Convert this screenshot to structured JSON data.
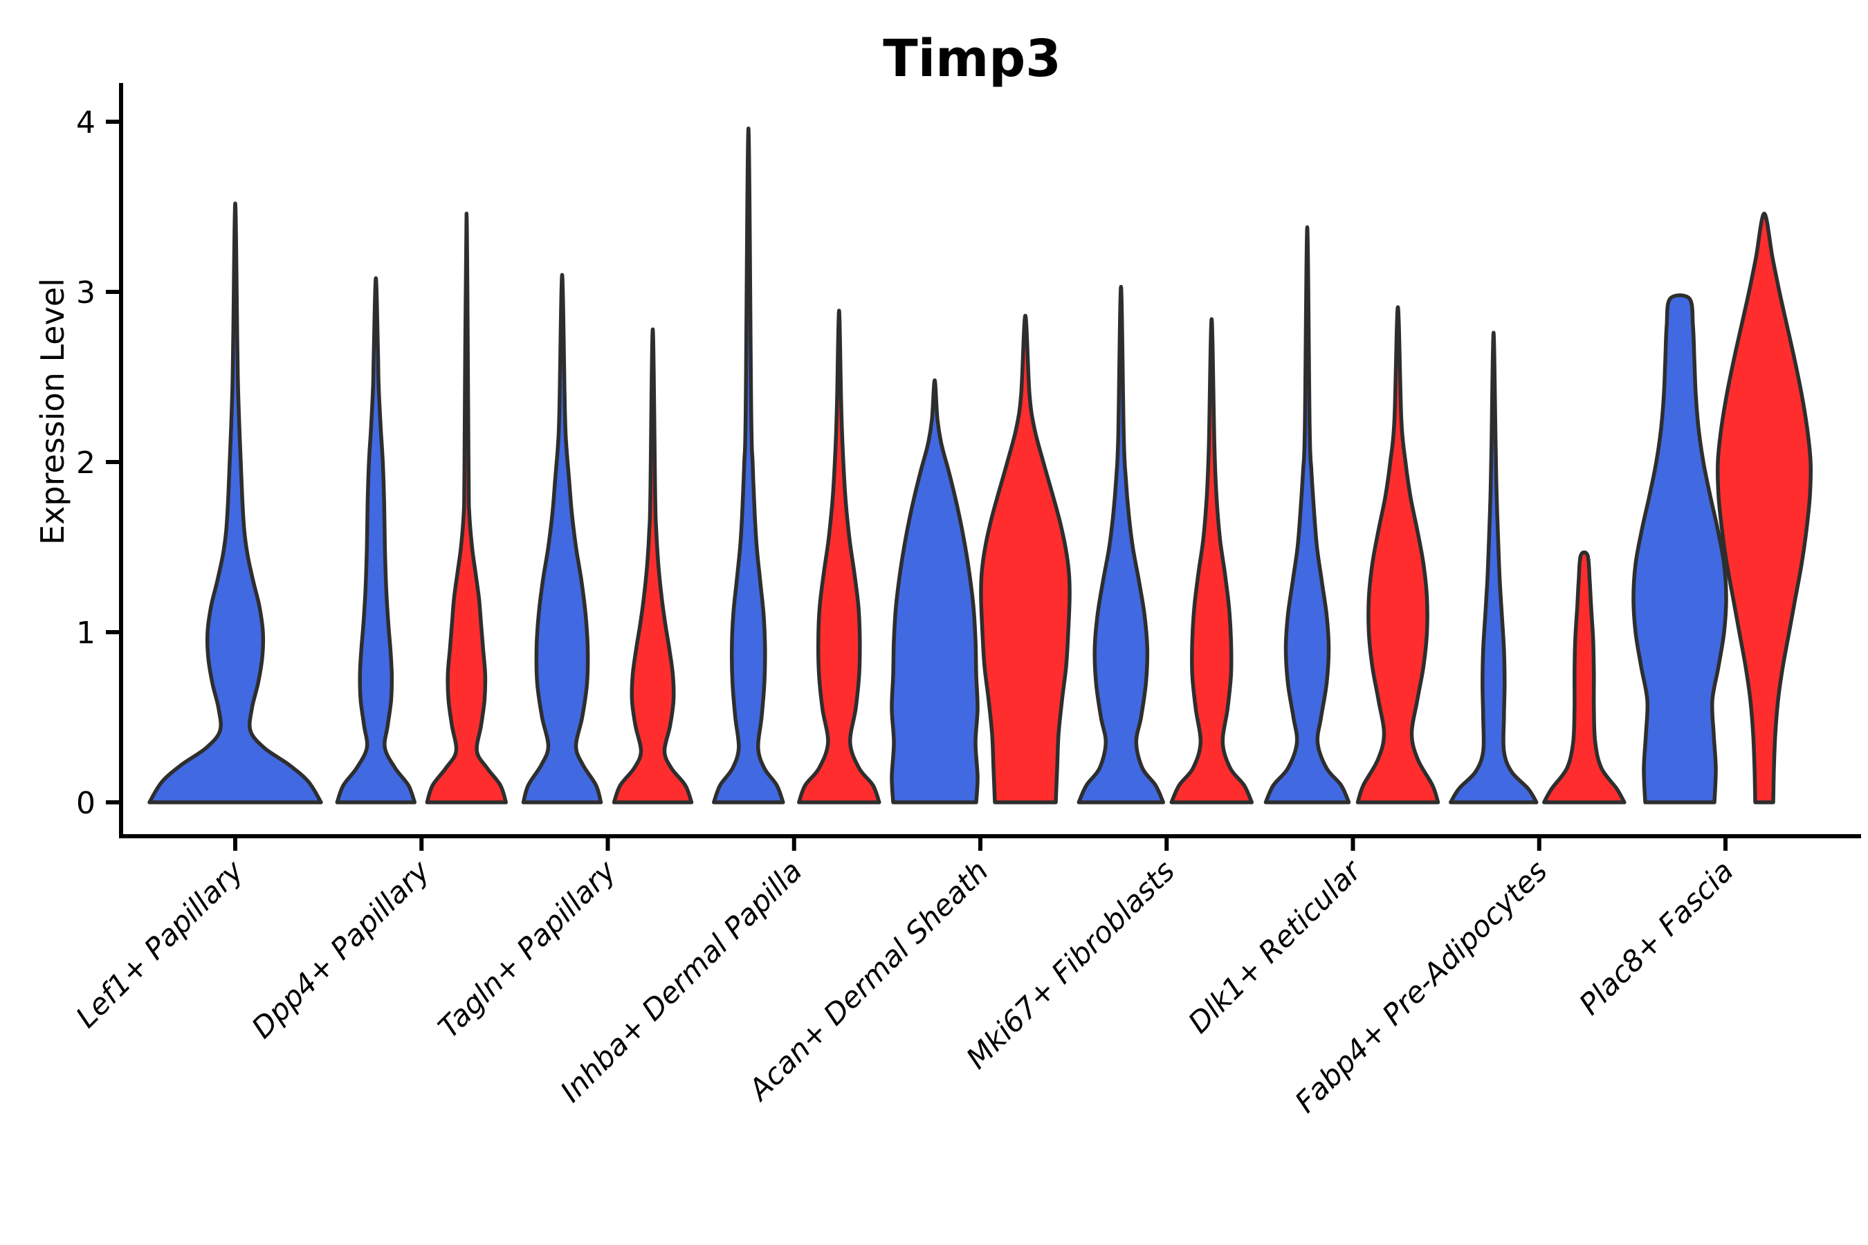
{
  "chart_data": {
    "type": "violin",
    "title": "Timp3",
    "ylabel": "Expression Level",
    "xlabel": "",
    "ylim": [
      0,
      4.26
    ],
    "yticks": [
      0,
      1,
      2,
      3,
      4
    ],
    "x_tick_rotation": 45,
    "grid": false,
    "legend": "none",
    "split_colors": {
      "blue": "#4169E1",
      "red": "#FF2D2D"
    },
    "edge_color": "#2e2e2e",
    "axis_color": "#000000",
    "categories": [
      "Lef1+ Papillary",
      "Dpp4+ Papillary",
      "Tagln+ Papillary",
      "Inhba+ Dermal Papilla",
      "Acan+ Dermal Sheath",
      "Mki67+ Fibroblasts",
      "Dlk1+ Reticular",
      "Fabp4+ Pre-Adipocytes",
      "Plac8+ Fascia"
    ],
    "violins": [
      {
        "cat": 0,
        "side": "blue",
        "single": true,
        "top": 3.52,
        "profile": [
          [
            0,
            124
          ],
          [
            0.12,
            106
          ],
          [
            0.22,
            78
          ],
          [
            0.32,
            42
          ],
          [
            0.42,
            22
          ],
          [
            0.55,
            24
          ],
          [
            0.7,
            33
          ],
          [
            0.85,
            39
          ],
          [
            1.0,
            40
          ],
          [
            1.15,
            35
          ],
          [
            1.3,
            26
          ],
          [
            1.45,
            18
          ],
          [
            1.6,
            13
          ],
          [
            1.8,
            10
          ],
          [
            2.0,
            8
          ],
          [
            2.2,
            6
          ],
          [
            2.45,
            4
          ],
          [
            2.7,
            3
          ]
        ]
      },
      {
        "cat": 1,
        "side": "blue",
        "top": 3.08,
        "profile": [
          [
            0,
            56
          ],
          [
            0.1,
            47
          ],
          [
            0.2,
            28
          ],
          [
            0.32,
            13
          ],
          [
            0.45,
            17
          ],
          [
            0.6,
            22
          ],
          [
            0.75,
            23
          ],
          [
            0.9,
            21
          ],
          [
            1.05,
            18
          ],
          [
            1.25,
            15
          ],
          [
            1.5,
            13
          ],
          [
            1.75,
            12
          ],
          [
            2.0,
            10
          ],
          [
            2.2,
            7
          ],
          [
            2.45,
            4
          ],
          [
            2.65,
            3
          ]
        ]
      },
      {
        "cat": 1,
        "side": "red",
        "top": 3.46,
        "profile": [
          [
            0,
            57
          ],
          [
            0.1,
            49
          ],
          [
            0.2,
            30
          ],
          [
            0.3,
            15
          ],
          [
            0.45,
            21
          ],
          [
            0.6,
            26
          ],
          [
            0.75,
            27
          ],
          [
            0.9,
            24
          ],
          [
            1.05,
            21
          ],
          [
            1.2,
            18
          ],
          [
            1.35,
            13
          ],
          [
            1.5,
            8
          ],
          [
            1.7,
            4
          ],
          [
            1.95,
            3
          ]
        ]
      },
      {
        "cat": 2,
        "side": "blue",
        "top": 3.1,
        "profile": [
          [
            0,
            56
          ],
          [
            0.1,
            49
          ],
          [
            0.22,
            30
          ],
          [
            0.33,
            20
          ],
          [
            0.5,
            29
          ],
          [
            0.7,
            36
          ],
          [
            0.9,
            37
          ],
          [
            1.1,
            34
          ],
          [
            1.3,
            28
          ],
          [
            1.5,
            20
          ],
          [
            1.7,
            14
          ],
          [
            1.9,
            10
          ],
          [
            2.1,
            6
          ],
          [
            2.3,
            4
          ]
        ]
      },
      {
        "cat": 2,
        "side": "red",
        "top": 2.78,
        "profile": [
          [
            0,
            56
          ],
          [
            0.1,
            47
          ],
          [
            0.2,
            27
          ],
          [
            0.3,
            17
          ],
          [
            0.45,
            25
          ],
          [
            0.6,
            30
          ],
          [
            0.75,
            29
          ],
          [
            0.9,
            24
          ],
          [
            1.05,
            18
          ],
          [
            1.2,
            13
          ],
          [
            1.4,
            8
          ],
          [
            1.6,
            5
          ],
          [
            1.8,
            3.5
          ]
        ]
      },
      {
        "cat": 3,
        "side": "blue",
        "top": 3.96,
        "profile": [
          [
            0,
            50
          ],
          [
            0.1,
            41
          ],
          [
            0.2,
            23
          ],
          [
            0.32,
            14
          ],
          [
            0.5,
            19
          ],
          [
            0.7,
            23
          ],
          [
            0.9,
            24
          ],
          [
            1.1,
            22
          ],
          [
            1.3,
            17
          ],
          [
            1.5,
            12
          ],
          [
            1.7,
            9
          ],
          [
            2.0,
            6
          ],
          [
            2.3,
            4
          ]
        ]
      },
      {
        "cat": 3,
        "side": "red",
        "top": 2.89,
        "profile": [
          [
            0,
            58
          ],
          [
            0.1,
            49
          ],
          [
            0.2,
            29
          ],
          [
            0.35,
            16
          ],
          [
            0.55,
            24
          ],
          [
            0.75,
            29
          ],
          [
            0.95,
            30
          ],
          [
            1.15,
            28
          ],
          [
            1.35,
            22
          ],
          [
            1.55,
            15
          ],
          [
            1.8,
            9
          ],
          [
            2.1,
            5
          ],
          [
            2.35,
            3
          ]
        ]
      },
      {
        "cat": 4,
        "side": "blue",
        "top": 2.48,
        "profile": [
          [
            0,
            60
          ],
          [
            0.15,
            62
          ],
          [
            0.35,
            59
          ],
          [
            0.55,
            62
          ],
          [
            0.75,
            60
          ],
          [
            0.95,
            59
          ],
          [
            1.15,
            56
          ],
          [
            1.35,
            50
          ],
          [
            1.55,
            42
          ],
          [
            1.75,
            32
          ],
          [
            1.95,
            20
          ],
          [
            2.1,
            10
          ],
          [
            2.25,
            4
          ]
        ]
      },
      {
        "cat": 4,
        "side": "red",
        "top": 2.86,
        "profile": [
          [
            0,
            44
          ],
          [
            0.2,
            46
          ],
          [
            0.4,
            48
          ],
          [
            0.6,
            53
          ],
          [
            0.8,
            59
          ],
          [
            1.0,
            62
          ],
          [
            1.2,
            64
          ],
          [
            1.35,
            63
          ],
          [
            1.5,
            58
          ],
          [
            1.65,
            50
          ],
          [
            1.8,
            40
          ],
          [
            2.0,
            26
          ],
          [
            2.2,
            13
          ],
          [
            2.4,
            6
          ]
        ]
      },
      {
        "cat": 5,
        "side": "blue",
        "top": 3.03,
        "profile": [
          [
            0,
            61
          ],
          [
            0.1,
            50
          ],
          [
            0.2,
            31
          ],
          [
            0.35,
            22
          ],
          [
            0.5,
            29
          ],
          [
            0.7,
            36
          ],
          [
            0.9,
            38
          ],
          [
            1.1,
            34
          ],
          [
            1.3,
            26
          ],
          [
            1.5,
            17
          ],
          [
            1.7,
            11
          ],
          [
            1.9,
            7
          ],
          [
            2.15,
            4
          ]
        ]
      },
      {
        "cat": 5,
        "side": "red",
        "top": 2.84,
        "profile": [
          [
            0,
            58
          ],
          [
            0.1,
            47
          ],
          [
            0.2,
            27
          ],
          [
            0.35,
            16
          ],
          [
            0.55,
            23
          ],
          [
            0.75,
            28
          ],
          [
            0.95,
            28
          ],
          [
            1.15,
            25
          ],
          [
            1.35,
            19
          ],
          [
            1.55,
            12
          ],
          [
            1.8,
            7
          ],
          [
            2.1,
            4
          ]
        ]
      },
      {
        "cat": 6,
        "side": "blue",
        "top": 3.38,
        "profile": [
          [
            0,
            60
          ],
          [
            0.1,
            49
          ],
          [
            0.2,
            28
          ],
          [
            0.35,
            15
          ],
          [
            0.5,
            20
          ],
          [
            0.7,
            28
          ],
          [
            0.9,
            31
          ],
          [
            1.1,
            28
          ],
          [
            1.3,
            21
          ],
          [
            1.5,
            14
          ],
          [
            1.7,
            10
          ],
          [
            1.95,
            6
          ],
          [
            2.2,
            3.5
          ]
        ]
      },
      {
        "cat": 6,
        "side": "red",
        "top": 2.91,
        "profile": [
          [
            0,
            58
          ],
          [
            0.1,
            50
          ],
          [
            0.25,
            29
          ],
          [
            0.4,
            20
          ],
          [
            0.6,
            28
          ],
          [
            0.8,
            37
          ],
          [
            1.0,
            42
          ],
          [
            1.2,
            42
          ],
          [
            1.4,
            37
          ],
          [
            1.6,
            28
          ],
          [
            1.8,
            18
          ],
          [
            2.0,
            11
          ],
          [
            2.25,
            5
          ]
        ]
      },
      {
        "cat": 7,
        "side": "blue",
        "top": 2.76,
        "profile": [
          [
            0,
            62
          ],
          [
            0.08,
            50
          ],
          [
            0.18,
            26
          ],
          [
            0.3,
            15
          ],
          [
            0.5,
            15
          ],
          [
            0.7,
            16
          ],
          [
            0.9,
            15
          ],
          [
            1.1,
            12
          ],
          [
            1.3,
            9
          ],
          [
            1.5,
            7
          ],
          [
            1.8,
            4.5
          ],
          [
            2.1,
            3
          ]
        ]
      },
      {
        "cat": 7,
        "side": "red",
        "top": 1.45,
        "blunt": true,
        "profile": [
          [
            0,
            58
          ],
          [
            0.08,
            47
          ],
          [
            0.2,
            25
          ],
          [
            0.35,
            16
          ],
          [
            0.55,
            14
          ],
          [
            0.75,
            14
          ],
          [
            0.95,
            13
          ],
          [
            1.15,
            10
          ],
          [
            1.3,
            8
          ],
          [
            1.45,
            5
          ]
        ]
      },
      {
        "cat": 8,
        "side": "blue",
        "top": 2.96,
        "blunt": true,
        "profile": [
          [
            0,
            50
          ],
          [
            0.2,
            52
          ],
          [
            0.4,
            49
          ],
          [
            0.6,
            47
          ],
          [
            0.8,
            56
          ],
          [
            1.0,
            64
          ],
          [
            1.2,
            67
          ],
          [
            1.4,
            64
          ],
          [
            1.6,
            55
          ],
          [
            1.8,
            44
          ],
          [
            2.0,
            34
          ],
          [
            2.2,
            27
          ],
          [
            2.4,
            23
          ],
          [
            2.6,
            21
          ],
          [
            2.8,
            19
          ],
          [
            2.96,
            14
          ]
        ]
      },
      {
        "cat": 8,
        "side": "red",
        "top": 3.46,
        "dx": 56,
        "profile": [
          [
            0,
            13
          ],
          [
            0.2,
            14
          ],
          [
            0.4,
            16
          ],
          [
            0.6,
            20
          ],
          [
            0.8,
            27
          ],
          [
            1.0,
            36
          ],
          [
            1.2,
            45
          ],
          [
            1.4,
            54
          ],
          [
            1.6,
            61
          ],
          [
            1.8,
            66
          ],
          [
            2.0,
            67
          ],
          [
            2.2,
            62
          ],
          [
            2.4,
            54
          ],
          [
            2.6,
            44
          ],
          [
            2.8,
            33
          ],
          [
            3.0,
            22
          ],
          [
            3.2,
            12
          ]
        ]
      }
    ]
  }
}
